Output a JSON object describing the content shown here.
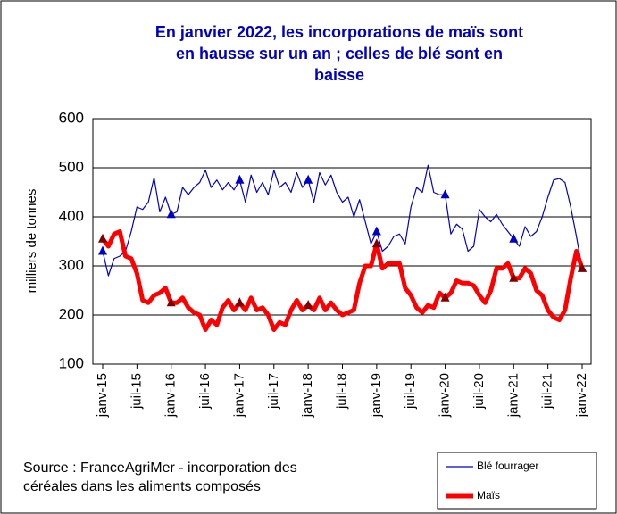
{
  "chart_data": {
    "type": "line",
    "title": [
      "En janvier 2022, les incorporations de maïs sont",
      "en hausse sur un an ; celles de blé sont en",
      "baisse"
    ],
    "y_label": "milliers de tonnes",
    "source": [
      "Source : FranceAgriMer - incorporation des",
      "céréales dans les aliments composés"
    ],
    "categories": [
      "janv-15",
      null,
      null,
      null,
      null,
      null,
      "juil-15",
      null,
      null,
      null,
      null,
      null,
      "janv-16",
      null,
      null,
      null,
      null,
      null,
      "juil-16",
      null,
      null,
      null,
      null,
      null,
      "janv-17",
      null,
      null,
      null,
      null,
      null,
      "juil-17",
      null,
      null,
      null,
      null,
      null,
      "janv-18",
      null,
      null,
      null,
      null,
      null,
      "juil-18",
      null,
      null,
      null,
      null,
      null,
      "janv-19",
      null,
      null,
      null,
      null,
      null,
      "juil-19",
      null,
      null,
      null,
      null,
      null,
      "janv-20",
      null,
      null,
      null,
      null,
      null,
      "juil-20",
      null,
      null,
      null,
      null,
      null,
      "janv-21",
      null,
      null,
      null,
      null,
      null,
      "juil-21",
      null,
      null,
      null,
      null,
      null,
      "janv-22"
    ],
    "series": [
      {
        "name": "Blé fourrager",
        "color": "#0000cc",
        "width": 1.2,
        "values": [
          330,
          280,
          315,
          320,
          330,
          370,
          420,
          415,
          430,
          480,
          410,
          440,
          405,
          410,
          460,
          445,
          460,
          470,
          495,
          460,
          475,
          455,
          470,
          455,
          475,
          430,
          485,
          450,
          470,
          445,
          495,
          460,
          470,
          450,
          490,
          460,
          475,
          430,
          490,
          465,
          485,
          450,
          430,
          440,
          400,
          435,
          390,
          345,
          370,
          330,
          340,
          360,
          365,
          345,
          420,
          460,
          450,
          505,
          450,
          445,
          445,
          365,
          385,
          375,
          330,
          340,
          415,
          400,
          390,
          405,
          385,
          370,
          355,
          340,
          380,
          360,
          370,
          400,
          440,
          475,
          478,
          470,
          420,
          360,
          295
        ]
      },
      {
        "name": "Maïs",
        "color": "#ff0000",
        "width": 5,
        "values": [
          355,
          340,
          365,
          370,
          320,
          315,
          285,
          230,
          225,
          240,
          245,
          255,
          225,
          225,
          235,
          215,
          205,
          200,
          170,
          190,
          180,
          215,
          230,
          210,
          225,
          210,
          235,
          210,
          215,
          200,
          170,
          185,
          180,
          210,
          230,
          210,
          220,
          210,
          235,
          210,
          225,
          210,
          200,
          205,
          210,
          265,
          300,
          300,
          345,
          295,
          305,
          305,
          305,
          255,
          240,
          215,
          205,
          220,
          215,
          245,
          235,
          245,
          270,
          265,
          265,
          260,
          240,
          225,
          250,
          295,
          295,
          305,
          275,
          275,
          295,
          285,
          250,
          240,
          210,
          195,
          190,
          210,
          275,
          330,
          295
        ]
      }
    ],
    "ylim": [
      100,
      600
    ],
    "yticks": [
      100,
      200,
      300,
      400,
      500,
      600
    ],
    "grid": true
  }
}
